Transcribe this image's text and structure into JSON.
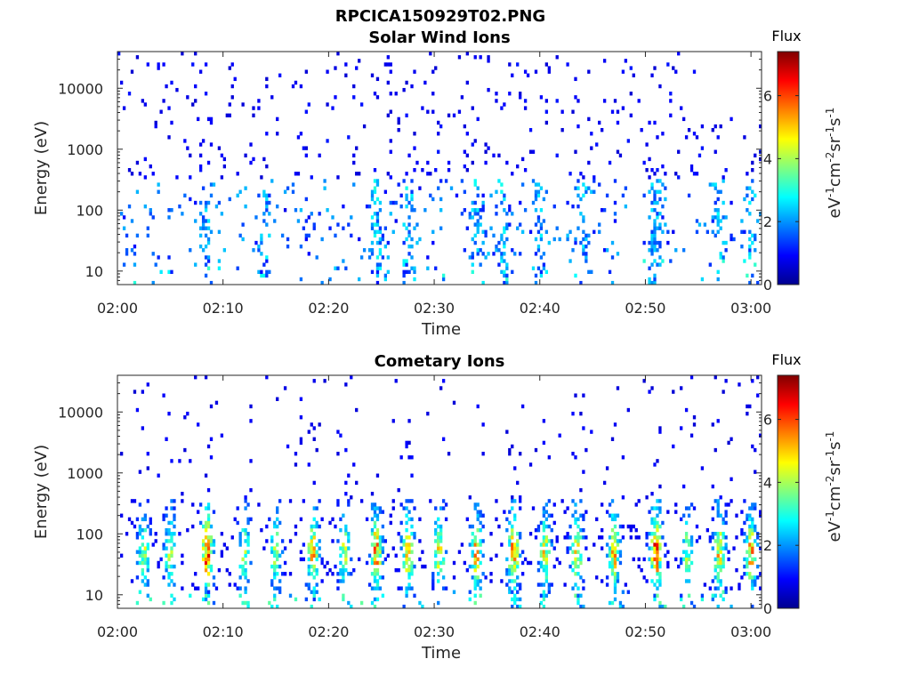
{
  "figure_title": "RPCICA150929T02.PNG",
  "colormap": "jet",
  "chart_data": [
    {
      "type": "heatmap",
      "title": "Solar Wind Ions",
      "xlabel": "Time",
      "ylabel": "Energy (eV)",
      "x_ticks": [
        "02:00",
        "02:10",
        "02:20",
        "02:30",
        "02:40",
        "02:50",
        "03:00"
      ],
      "x_range": [
        "02:00",
        "03:01"
      ],
      "y_scale": "log",
      "y_ticks": [
        10,
        100,
        1000,
        10000
      ],
      "y_tick_labels": [
        "10",
        "100",
        "1000",
        "10000"
      ],
      "y_range": [
        6,
        40000
      ],
      "colorbar": {
        "title": "Flux",
        "label": "eV-1cm-2sr-1s-1",
        "ticks": [
          0,
          2,
          4,
          6
        ],
        "range": [
          0,
          7.4
        ]
      },
      "profile": {
        "sparse_background": true,
        "low_energy_bursts": true,
        "max_flux": 4
      },
      "bursts": [
        {
          "time": "02:08.5",
          "intensity": 0.5
        },
        {
          "time": "02:14",
          "intensity": 0.5
        },
        {
          "time": "02:24.5",
          "intensity": 0.7
        },
        {
          "time": "02:27.5",
          "intensity": 0.6
        },
        {
          "time": "02:34",
          "intensity": 0.6
        },
        {
          "time": "02:36.5",
          "intensity": 0.6
        },
        {
          "time": "02:40",
          "intensity": 0.5
        },
        {
          "time": "02:44",
          "intensity": 0.5
        },
        {
          "time": "02:51",
          "intensity": 0.6
        },
        {
          "time": "02:57",
          "intensity": 0.5
        },
        {
          "time": "03:00",
          "intensity": 0.5
        }
      ]
    },
    {
      "type": "heatmap",
      "title": "Cometary Ions",
      "xlabel": "Time",
      "ylabel": "Energy (eV)",
      "x_ticks": [
        "02:00",
        "02:10",
        "02:20",
        "02:30",
        "02:40",
        "02:50",
        "03:00"
      ],
      "x_range": [
        "02:00",
        "03:01"
      ],
      "y_scale": "log",
      "y_ticks": [
        10,
        100,
        1000,
        10000
      ],
      "y_tick_labels": [
        "10",
        "100",
        "1000",
        "10000"
      ],
      "y_range": [
        6,
        40000
      ],
      "colorbar": {
        "title": "Flux",
        "label": "eV-1cm-2sr-1s-1",
        "ticks": [
          0,
          2,
          4,
          6
        ],
        "range": [
          0,
          7.4
        ]
      },
      "profile": {
        "sparse_background": false,
        "low_energy_bursts": true,
        "max_flux": 6.5
      },
      "bursts": [
        {
          "time": "02:02.5",
          "intensity": 0.6
        },
        {
          "time": "02:05",
          "intensity": 0.6
        },
        {
          "time": "02:08.5",
          "intensity": 1.0
        },
        {
          "time": "02:12",
          "intensity": 0.6
        },
        {
          "time": "02:15",
          "intensity": 0.6
        },
        {
          "time": "02:18.5",
          "intensity": 0.8
        },
        {
          "time": "02:21.5",
          "intensity": 0.6
        },
        {
          "time": "02:24.5",
          "intensity": 0.9
        },
        {
          "time": "02:27.5",
          "intensity": 0.8
        },
        {
          "time": "02:30.5",
          "intensity": 0.7
        },
        {
          "time": "02:34",
          "intensity": 0.8
        },
        {
          "time": "02:37.5",
          "intensity": 0.9
        },
        {
          "time": "02:40.5",
          "intensity": 0.7
        },
        {
          "time": "02:43.5",
          "intensity": 0.8
        },
        {
          "time": "02:47",
          "intensity": 0.8
        },
        {
          "time": "02:51",
          "intensity": 1.0
        },
        {
          "time": "02:54",
          "intensity": 0.6
        },
        {
          "time": "02:57",
          "intensity": 0.8
        },
        {
          "time": "03:00",
          "intensity": 0.8
        }
      ]
    }
  ]
}
